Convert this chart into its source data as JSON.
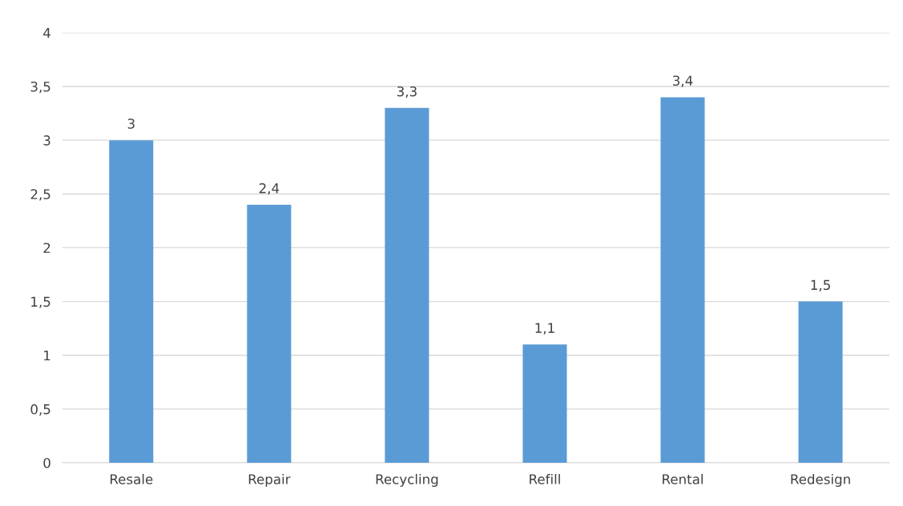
{
  "chart_data": {
    "type": "bar",
    "categories": [
      "Resale",
      "Repair",
      "Recycling",
      "Refill",
      "Rental",
      "Redesign"
    ],
    "values": [
      3,
      2.4,
      3.3,
      1.1,
      3.4,
      1.5
    ],
    "value_labels": [
      "3",
      "2,4",
      "3,3",
      "1,1",
      "3,4",
      "1,5"
    ],
    "color": "#5b9bd5",
    "ylim": [
      0,
      4
    ],
    "yticks": [
      0,
      {
        "value": 0.5,
        "label": "0,5"
      },
      1,
      {
        "value": 1.5,
        "label": "1,5"
      },
      2,
      {
        "value": 2.5,
        "label": "2,5"
      },
      3,
      {
        "value": 3.5,
        "label": "3,5"
      },
      4
    ],
    "grid": "y"
  }
}
